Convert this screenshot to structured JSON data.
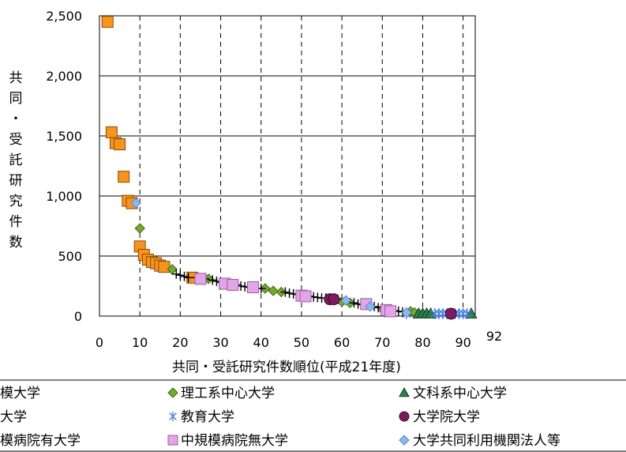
{
  "chart_data": {
    "type": "scatter",
    "title": "",
    "xlabel": "共同・受託研究件数順位(平成21年度)",
    "ylabel": "共同・受託研究件数",
    "xlim": [
      0,
      92
    ],
    "ylim": [
      0,
      2500
    ],
    "x_ticks": [
      "0",
      "10",
      "20",
      "30",
      "40",
      "50",
      "60",
      "70",
      "80",
      "90",
      "92"
    ],
    "y_ticks": [
      "0",
      "500",
      "1,000",
      "1,500",
      "2,000",
      "2,500"
    ],
    "grid": "vertical dashed, horizontal solid",
    "legend_position": "bottom",
    "legend": [
      {
        "label": "模大学",
        "marker": "square",
        "color": "#F7941D"
      },
      {
        "label": "理工系中心大学",
        "marker": "diamond",
        "color": "#76A833"
      },
      {
        "label": "文科系中心大学",
        "marker": "triangle",
        "color": "#2E7D4F"
      },
      {
        "label": "大学",
        "marker": "plus",
        "color": "#000000"
      },
      {
        "label": "教育大学",
        "marker": "asterisk",
        "color": "#4A7FE0"
      },
      {
        "label": "大学院大学",
        "marker": "circle",
        "color": "#7B1C5C"
      },
      {
        "label": "模病院有大学",
        "marker": "square",
        "color": "#F7941D"
      },
      {
        "label": "中規模病院無大学",
        "marker": "square",
        "color": "#E2A6E6"
      },
      {
        "label": "大学共同利用機関法人等",
        "marker": "diamond",
        "color": "#8DB8EE"
      }
    ],
    "series": [
      {
        "name": "模大学",
        "marker": "square",
        "color": "#F7941D",
        "points": [
          [
            2,
            2450
          ],
          [
            3,
            1530
          ],
          [
            4,
            1440
          ],
          [
            5,
            1430
          ],
          [
            6,
            1160
          ],
          [
            7,
            960
          ],
          [
            8,
            940
          ],
          [
            10,
            580
          ],
          [
            11,
            510
          ],
          [
            12,
            470
          ],
          [
            13,
            450
          ],
          [
            14,
            440
          ],
          [
            15,
            420
          ],
          [
            16,
            410
          ],
          [
            23,
            320
          ]
        ]
      },
      {
        "name": "理工系中心大学",
        "marker": "diamond",
        "color": "#76A833",
        "points": [
          [
            10,
            730
          ],
          [
            18,
            390
          ],
          [
            27,
            310
          ],
          [
            41,
            230
          ],
          [
            43,
            210
          ],
          [
            45,
            200
          ],
          [
            60,
            120
          ],
          [
            62,
            110
          ],
          [
            70,
            60
          ],
          [
            77,
            40
          ],
          [
            78,
            30
          ]
        ]
      },
      {
        "name": "文科系中心大学",
        "marker": "triangle",
        "color": "#2E7D4F",
        "points": [
          [
            79,
            20
          ],
          [
            80,
            20
          ],
          [
            81,
            20
          ],
          [
            82,
            20
          ],
          [
            92,
            20
          ]
        ]
      },
      {
        "name": "大学",
        "marker": "plus",
        "color": "#000000",
        "points": [
          [
            19,
            350
          ],
          [
            20,
            340
          ],
          [
            21,
            330
          ],
          [
            22,
            320
          ],
          [
            24,
            320
          ],
          [
            25,
            310
          ],
          [
            26,
            310
          ],
          [
            28,
            300
          ],
          [
            29,
            290
          ],
          [
            30,
            280
          ],
          [
            34,
            260
          ],
          [
            35,
            250
          ],
          [
            36,
            245
          ],
          [
            37,
            240
          ],
          [
            39,
            230
          ],
          [
            40,
            230
          ],
          [
            46,
            200
          ],
          [
            47,
            190
          ],
          [
            48,
            185
          ],
          [
            49,
            180
          ],
          [
            51,
            170
          ],
          [
            52,
            165
          ],
          [
            53,
            160
          ],
          [
            54,
            155
          ],
          [
            55,
            150
          ],
          [
            56,
            150
          ],
          [
            59,
            140
          ],
          [
            63,
            110
          ],
          [
            64,
            100
          ],
          [
            65,
            95
          ],
          [
            66,
            90
          ],
          [
            68,
            80
          ],
          [
            69,
            70
          ],
          [
            72,
            50
          ],
          [
            73,
            45
          ],
          [
            74,
            40
          ],
          [
            75,
            35
          ]
        ]
      },
      {
        "name": "教育大学",
        "marker": "asterisk",
        "color": "#4A7FE0",
        "points": [
          [
            76,
            20
          ],
          [
            83,
            20
          ],
          [
            84,
            20
          ],
          [
            85,
            20
          ],
          [
            86,
            20
          ],
          [
            88,
            20
          ],
          [
            89,
            20
          ],
          [
            90,
            20
          ],
          [
            91,
            20
          ]
        ]
      },
      {
        "name": "大学院大学",
        "marker": "circle",
        "color": "#7B1C5C",
        "points": [
          [
            57,
            140
          ],
          [
            58,
            140
          ],
          [
            71,
            40
          ],
          [
            87,
            20
          ]
        ]
      },
      {
        "name": "中規模病院無大学",
        "marker": "square",
        "color": "#E2A6E6",
        "points": [
          [
            25,
            310
          ],
          [
            31,
            270
          ],
          [
            33,
            260
          ],
          [
            38,
            240
          ],
          [
            50,
            170
          ],
          [
            51,
            165
          ],
          [
            66,
            100
          ],
          [
            71,
            50
          ],
          [
            72,
            40
          ]
        ]
      },
      {
        "name": "大学共同利用機関法人等",
        "marker": "diamond",
        "color": "#8DB8EE",
        "points": [
          [
            9,
            940
          ],
          [
            61,
            130
          ],
          [
            67,
            80
          ],
          [
            76,
            30
          ]
        ]
      }
    ]
  }
}
